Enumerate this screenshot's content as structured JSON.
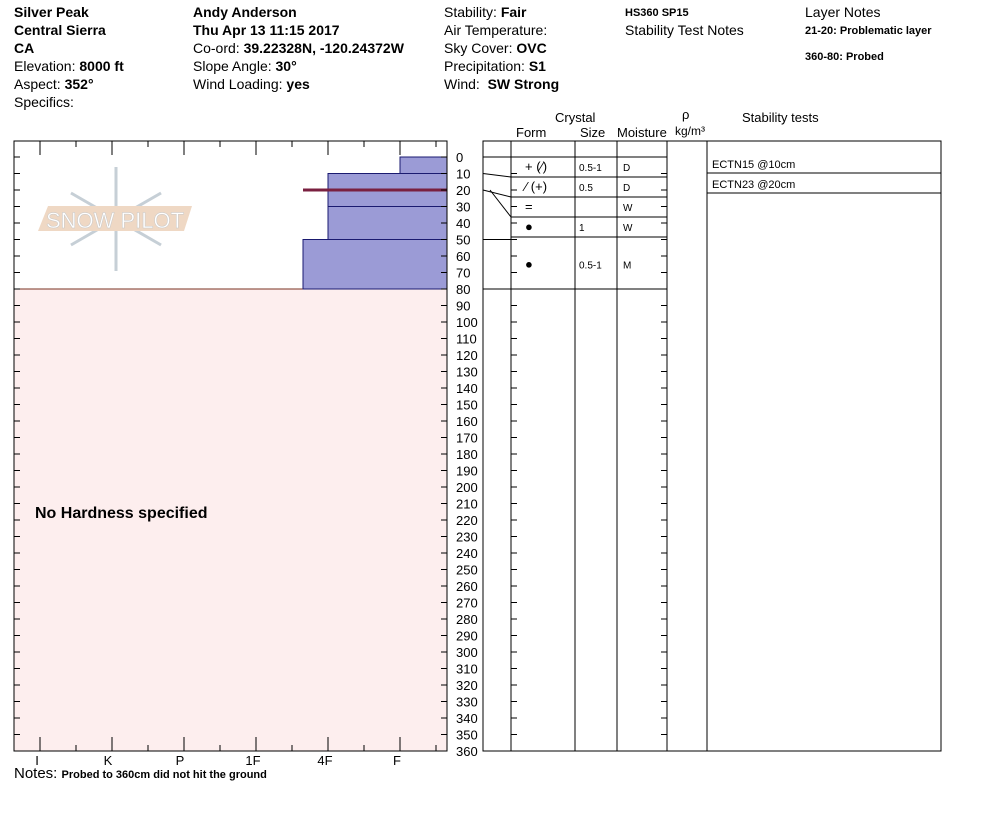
{
  "header": {
    "location": "Silver Peak",
    "range": "Central Sierra",
    "state": "CA",
    "elevation_label": "Elevation:",
    "elevation": "8000 ft",
    "aspect_label": "Aspect:",
    "aspect": "352°",
    "specifics_label": "Specifics:",
    "observer": "Andy Anderson",
    "datetime": "Thu Apr 13 11:15 2017",
    "coord_label": "Co-ord:",
    "coord": "39.22328N, -120.24372W",
    "slope_label": "Slope Angle:",
    "slope": "30°",
    "wind_loading_label": "Wind Loading:",
    "wind_loading": "yes",
    "stability_label": "Stability:",
    "stability": "Fair",
    "air_temp_label": "Air Temperature:",
    "sky_label": "Sky Cover:",
    "sky": "OVC",
    "precip_label": "Precipitation:",
    "precip": "S1",
    "wind_label": "Wind:",
    "wind": "SW Strong",
    "hs": "HS360  SP15",
    "stability_notes_label": "Stability Test Notes",
    "layer_notes_label": "Layer Notes",
    "layer_notes": [
      "21-20: Problematic layer",
      "360-80: Probed"
    ]
  },
  "table_headers": {
    "crystal": "Crystal",
    "form": "Form",
    "size": "Size",
    "moisture": "Moisture",
    "rho": "ρ",
    "density_unit": "kg/m³",
    "stability_tests": "Stability tests"
  },
  "layers": [
    {
      "top": 0,
      "bottom": 10,
      "hardness": "F",
      "form": "+ (⁄)",
      "size": "0.5-1",
      "moisture": "D"
    },
    {
      "top": 10,
      "bottom": 20,
      "hardness": "4F",
      "form": "⁄ (+)",
      "size": "0.5",
      "moisture": "D"
    },
    {
      "top": 20,
      "bottom": 30,
      "hardness": "4F",
      "form": "=",
      "size": "",
      "moisture": "W"
    },
    {
      "top": 30,
      "bottom": 50,
      "hardness": "4F",
      "form": "●",
      "size": "1",
      "moisture": "W"
    },
    {
      "top": 50,
      "bottom": 80,
      "hardness": "4F-",
      "form": "●",
      "size": "0.5-1",
      "moisture": "M"
    }
  ],
  "problem_layer_depth": 20,
  "stability_tests": [
    "ECTN15 @10cm",
    "ECTN23 @20cm"
  ],
  "hardness_axis": [
    "I",
    "K",
    "P",
    "1F",
    "4F",
    "F"
  ],
  "depth_axis_max": 360,
  "no_hardness_text": "No Hardness specified",
  "notes_label": "Notes:",
  "notes": "Probed to 360cm did not hit the ground",
  "logo_text": "SNOW PILOT",
  "colors": {
    "layer_fill": "#9b9bd6",
    "probed_fill": "#fdeeee",
    "problem_line": "#7a2040"
  }
}
